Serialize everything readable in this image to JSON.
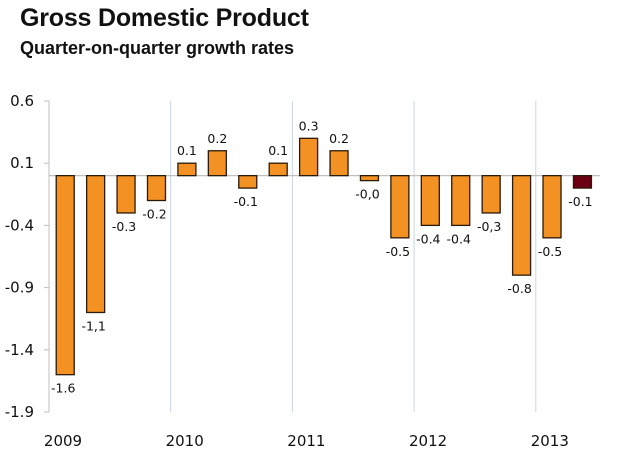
{
  "chart_data": {
    "type": "bar",
    "title": "Gross Domestic Product",
    "subtitle": "Quarter-on-quarter growth rates",
    "xlabel": "",
    "ylabel": "",
    "ylim": [
      -1.9,
      0.6
    ],
    "yticks": [
      0.6,
      0.1,
      -0.4,
      -0.9,
      -1.4,
      -1.9
    ],
    "ytick_labels": [
      "0.6",
      "0.1",
      "-0.4",
      "-0.9",
      "-1.4",
      "-1.9"
    ],
    "grid": false,
    "year_labels": [
      "2009",
      "2010",
      "2011",
      "2012",
      "2013"
    ],
    "categories": [
      "2009 Q1",
      "2009 Q2",
      "2009 Q3",
      "2009 Q4",
      "2010 Q1",
      "2010 Q2",
      "2010 Q3",
      "2010 Q4",
      "2011 Q1",
      "2011 Q2",
      "2011 Q3",
      "2011 Q4",
      "2012 Q1",
      "2012 Q2",
      "2012 Q3",
      "2012 Q4",
      "2013 Q1",
      "2013 Q2"
    ],
    "values": [
      -1.6,
      -1.1,
      -0.3,
      -0.2,
      0.1,
      0.2,
      -0.1,
      0.1,
      0.3,
      0.2,
      -0.04,
      -0.5,
      -0.4,
      -0.4,
      -0.3,
      -0.8,
      -0.5,
      -0.1
    ],
    "data_labels": [
      "-1.6",
      "-1,1",
      "-0.3",
      "-0.2",
      "0.1",
      "0.2",
      "-0.1",
      "0.1",
      "0.3",
      "0.2",
      "-0,0",
      "-0.5",
      "-0.4",
      "-0.4",
      "-0,3",
      "-0.8",
      "-0.5",
      "-0.1"
    ],
    "colors": {
      "bar": "#F39122",
      "bar_highlight": "#6B0013",
      "bar_outline": "#2a1a0a",
      "axis": "#bfbfbf",
      "separator": "#c9d6e6"
    },
    "highlight_index": 17
  }
}
